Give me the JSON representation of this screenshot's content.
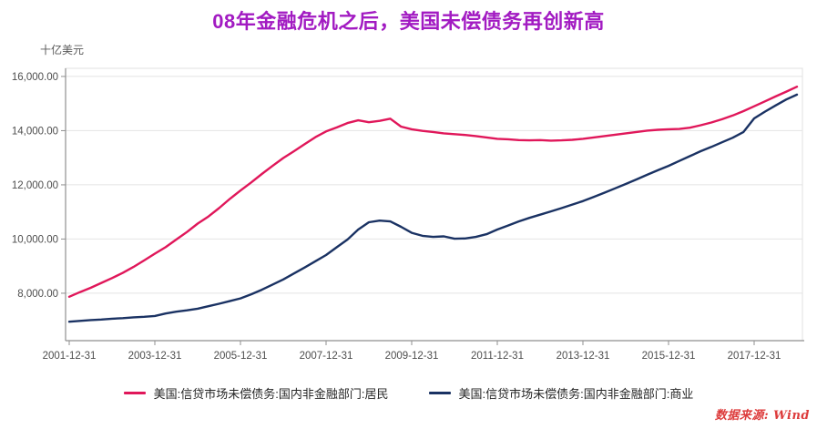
{
  "header": {
    "title": "08年金融危机之后，美国未偿债务再创新高"
  },
  "axis_unit_label": "十亿美元",
  "source_note": "数据来源: Wind",
  "colors": {
    "title": "#a21bc2",
    "household_line": "#e0175a",
    "business_line": "#1a3263",
    "grid": "#e4e4e4",
    "plot_border": "#e0e0e0",
    "axis": "#8f8f8f",
    "tick_text": "#4d4d4d",
    "source_text": "#dd3c3c"
  },
  "chart_data": {
    "type": "line",
    "title": "08年金融危机之后，美国未偿债务再创新高",
    "ylabel": "十亿美元",
    "xlabel": "",
    "grid": true,
    "legend_position": "bottom",
    "ylim": [
      6250,
      16300
    ],
    "yticks": {
      "values": [
        8000,
        10000,
        12000,
        14000,
        16000
      ],
      "labels": [
        "8,000.00",
        "10,000.00",
        "12,000.00",
        "14,000.00",
        "16,000.00"
      ]
    },
    "xticks": {
      "indices": [
        0,
        8,
        16,
        24,
        32,
        40,
        48,
        56,
        64
      ],
      "labels": [
        "2001-12-31",
        "2003-12-31",
        "2005-12-31",
        "2007-12-31",
        "2009-12-31",
        "2011-12-31",
        "2013-12-31",
        "2015-12-31",
        "2017-12-31"
      ]
    },
    "x": [
      "2001-12-31",
      "2002-03-31",
      "2002-06-30",
      "2002-09-30",
      "2002-12-31",
      "2003-03-31",
      "2003-06-30",
      "2003-09-30",
      "2003-12-31",
      "2004-03-31",
      "2004-06-30",
      "2004-09-30",
      "2004-12-31",
      "2005-03-31",
      "2005-06-30",
      "2005-09-30",
      "2005-12-31",
      "2006-03-31",
      "2006-06-30",
      "2006-09-30",
      "2006-12-31",
      "2007-03-31",
      "2007-06-30",
      "2007-09-30",
      "2007-12-31",
      "2008-03-31",
      "2008-06-30",
      "2008-09-30",
      "2008-12-31",
      "2009-03-31",
      "2009-06-30",
      "2009-09-30",
      "2009-12-31",
      "2010-03-31",
      "2010-06-30",
      "2010-09-30",
      "2010-12-31",
      "2011-03-31",
      "2011-06-30",
      "2011-09-30",
      "2011-12-31",
      "2012-03-31",
      "2012-06-30",
      "2012-09-30",
      "2012-12-31",
      "2013-03-31",
      "2013-06-30",
      "2013-09-30",
      "2013-12-31",
      "2014-03-31",
      "2014-06-30",
      "2014-09-30",
      "2014-12-31",
      "2015-03-31",
      "2015-06-30",
      "2015-09-30",
      "2015-12-31",
      "2016-03-31",
      "2016-06-30",
      "2016-09-30",
      "2016-12-31",
      "2017-03-31",
      "2017-06-30",
      "2017-09-30",
      "2017-12-31",
      "2018-03-31",
      "2018-06-30",
      "2018-09-30",
      "2018-12-31"
    ],
    "series": [
      {
        "key": "household",
        "name": "美国:信贷市场未偿债务:国内非金融部门:居民",
        "color": "#e0175a",
        "values": [
          7870,
          8040,
          8200,
          8380,
          8560,
          8750,
          8970,
          9210,
          9460,
          9700,
          9980,
          10260,
          10570,
          10830,
          11140,
          11480,
          11790,
          12090,
          12400,
          12700,
          12990,
          13240,
          13500,
          13760,
          13970,
          14120,
          14280,
          14380,
          14310,
          14360,
          14440,
          14150,
          14050,
          13990,
          13950,
          13900,
          13870,
          13840,
          13800,
          13750,
          13700,
          13680,
          13650,
          13640,
          13650,
          13630,
          13640,
          13660,
          13700,
          13750,
          13800,
          13850,
          13900,
          13950,
          14000,
          14030,
          14050,
          14060,
          14110,
          14200,
          14300,
          14420,
          14560,
          14720,
          14900,
          15080,
          15260,
          15440,
          15620
        ]
      },
      {
        "key": "business",
        "name": "美国:信贷市场未偿债务:国内非金融部门:商业",
        "color": "#1a3263",
        "values": [
          6950,
          6980,
          7010,
          7030,
          7060,
          7080,
          7110,
          7130,
          7160,
          7250,
          7320,
          7370,
          7430,
          7520,
          7610,
          7710,
          7810,
          7960,
          8130,
          8320,
          8510,
          8730,
          8950,
          9180,
          9410,
          9700,
          9980,
          10350,
          10620,
          10680,
          10650,
          10450,
          10230,
          10120,
          10080,
          10100,
          10010,
          10020,
          10080,
          10180,
          10350,
          10500,
          10650,
          10780,
          10900,
          11020,
          11140,
          11270,
          11400,
          11550,
          11710,
          11870,
          12030,
          12200,
          12370,
          12540,
          12700,
          12880,
          13060,
          13240,
          13400,
          13570,
          13740,
          13950,
          14450,
          14700,
          14930,
          15150,
          15330
        ]
      }
    ]
  }
}
